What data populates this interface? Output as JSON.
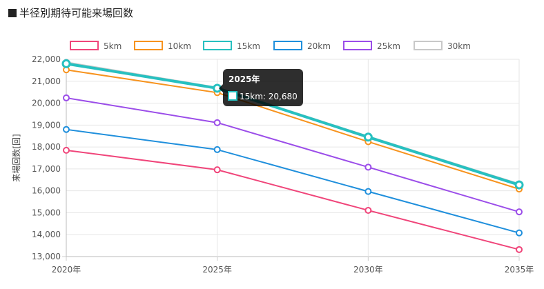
{
  "header": {
    "title": "半径別期待可能来場回数"
  },
  "chart_data": {
    "type": "line",
    "title": "半径別期待可能来場回数",
    "xlabel": "",
    "ylabel": "来場回数[回]",
    "categories": [
      "2020年",
      "2025年",
      "2030年",
      "2035年"
    ],
    "ylim": [
      13000,
      22000
    ],
    "yticks": [
      "13,000",
      "14,000",
      "15,000",
      "16,000",
      "17,000",
      "18,000",
      "19,000",
      "20,000",
      "21,000",
      "22,000"
    ],
    "grid": true,
    "legend_position": "top",
    "series": [
      {
        "name": "5km",
        "color": "#f0457a",
        "values": [
          17850,
          16960,
          15110,
          13320
        ]
      },
      {
        "name": "10km",
        "color": "#f7931e",
        "values": [
          21520,
          20480,
          18240,
          16080
        ]
      },
      {
        "name": "15km",
        "color": "#27c0c0",
        "values": [
          21800,
          20680,
          18450,
          16270
        ]
      },
      {
        "name": "20km",
        "color": "#1f8fdc",
        "values": [
          18800,
          17880,
          15970,
          14080
        ]
      },
      {
        "name": "25km",
        "color": "#9b4de9",
        "values": [
          20240,
          19110,
          17080,
          15040
        ]
      },
      {
        "name": "30km",
        "color": "#c8c8c8",
        "values": [
          21870,
          20720,
          18490,
          16320
        ]
      }
    ],
    "tooltip": {
      "title": "2025年",
      "label": "15km: 20,680",
      "series_index": 2,
      "point_index": 1
    }
  }
}
